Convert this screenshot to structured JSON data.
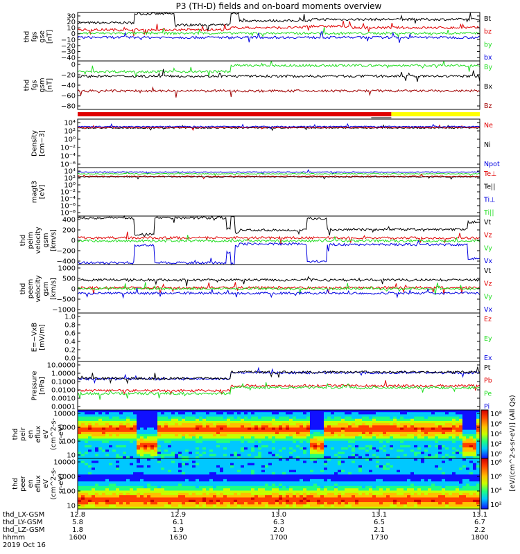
{
  "title": "P3 (TH-D) fields and on-board moments overview",
  "footer": {
    "row_labels": [
      "thd_LX-GSM",
      "thd_LY-GSM",
      "thd_LZ-GSM",
      "hhmm",
      "2019 Oct 16"
    ],
    "columns": [
      {
        "lx": "12.8",
        "ly": "5.8",
        "lz": "1.8",
        "hhmm": "1600"
      },
      {
        "lx": "12.9",
        "ly": "6.1",
        "lz": "1.9",
        "hhmm": "1630"
      },
      {
        "lx": "13.0",
        "ly": "6.3",
        "lz": "2.0",
        "hhmm": "1700"
      },
      {
        "lx": "13.1",
        "ly": "6.5",
        "lz": "2.1",
        "hhmm": "1730"
      },
      {
        "lx": "13.1",
        "ly": "6.7",
        "lz": "2.2",
        "hhmm": "1800"
      }
    ]
  },
  "colorbar": {
    "label": "[eV/(cm^2-s-sr-eV)] (All Qs)",
    "top_ticks": [
      "10⁸",
      "10⁶",
      "10⁴",
      "10²",
      "10⁰"
    ],
    "bottom_ticks": [
      "10⁸",
      "10⁶",
      "10⁴",
      "10²"
    ]
  },
  "colors": {
    "black": "#000000",
    "red": "#e00000",
    "green": "#22dd22",
    "blue": "#0000e0",
    "darkred": "#a00000",
    "yellow": "#ffff00"
  },
  "chart_data": [
    {
      "type": "line",
      "ylabel": [
        "thd",
        "fgs",
        "gse",
        "[nT]"
      ],
      "yticks": [
        "30",
        "20",
        "10",
        "0",
        "−10",
        "−20",
        "−30",
        "−40"
      ],
      "legend": [
        {
          "name": "Bt",
          "color": "#000000"
        },
        {
          "name": "bz",
          "color": "#e00000"
        },
        {
          "name": "by",
          "color": "#22dd22"
        },
        {
          "name": "bx",
          "color": "#0000e0"
        }
      ],
      "ylim": [
        -40,
        30
      ],
      "series": [
        {
          "name": "Bt",
          "color": "#000000",
          "segments": [
            [
              0,
              0.14,
              15
            ],
            [
              0.14,
              0.24,
              28
            ],
            [
              0.24,
              0.38,
              12
            ],
            [
              0.38,
              0.4,
              28
            ],
            [
              0.4,
              0.58,
              18
            ],
            [
              0.58,
              0.68,
              20
            ],
            [
              0.68,
              1.0,
              20
            ]
          ]
        },
        {
          "name": "bz",
          "color": "#e00000",
          "segments": [
            [
              0,
              0.38,
              5
            ],
            [
              0.38,
              0.56,
              8
            ],
            [
              0.56,
              0.68,
              10
            ],
            [
              0.68,
              1.0,
              8
            ]
          ]
        },
        {
          "name": "by",
          "color": "#22dd22",
          "segments": [
            [
              0,
              1.0,
              0
            ]
          ]
        },
        {
          "name": "bx",
          "color": "#0000e0",
          "segments": [
            [
              0,
              1.0,
              -6
            ]
          ]
        }
      ]
    },
    {
      "type": "line",
      "ylabel": [
        "thd",
        "fgs",
        "gsm",
        "[nT]"
      ],
      "yticks": [
        "0",
        "−20",
        "−40",
        "−60",
        "−80"
      ],
      "legend": [
        {
          "name": "By",
          "color": "#22dd22"
        },
        {
          "name": "Bx",
          "color": "#000000"
        },
        {
          "name": "Bz",
          "color": "#a00000"
        }
      ],
      "ylim": [
        -90,
        15
      ],
      "series": [
        {
          "name": "By",
          "color": "#22dd22",
          "segments": [
            [
              0,
              0.38,
              -8
            ],
            [
              0.38,
              1.0,
              5
            ]
          ]
        },
        {
          "name": "Bx",
          "color": "#000000",
          "segments": [
            [
              0,
              1.0,
              -18
            ]
          ]
        },
        {
          "name": "Bz",
          "color": "#a00000",
          "segments": [
            [
              0,
              1.0,
              -50
            ]
          ]
        }
      ]
    },
    {
      "type": "line",
      "ylabel": [
        "Density",
        "[cm−3]"
      ],
      "yticks": [
        "10⁴",
        "10²",
        "10⁰",
        "10⁻²",
        "10⁻⁴",
        "10⁻⁶"
      ],
      "legend": [
        {
          "name": "Ne",
          "color": "#e00000"
        },
        {
          "name": "Ni",
          "color": "#000000"
        },
        {
          "name": "Npot",
          "color": "#0000e0"
        }
      ],
      "ylim": [
        -7,
        4
      ],
      "log": true,
      "series": [
        {
          "name": "Ni",
          "color": "#000000",
          "segments": [
            [
              0,
              1.0,
              2
            ]
          ]
        },
        {
          "name": "Ne",
          "color": "#e00000",
          "segments": [
            [
              0,
              1.0,
              2.1
            ]
          ]
        },
        {
          "name": "Npot",
          "color": "#0000e0",
          "segments": [
            [
              0,
              1.0,
              2.3
            ]
          ]
        }
      ]
    },
    {
      "type": "line",
      "ylabel": [
        "magt3",
        "[eV]"
      ],
      "yticks": [
        "10⁴",
        "10²",
        "10⁰",
        "10⁻²",
        "10⁻⁴",
        "10⁻⁶",
        "10⁻⁸"
      ],
      "legend": [
        {
          "name": "Te⊥",
          "color": "#e00000"
        },
        {
          "name": "Te||",
          "color": "#000000"
        },
        {
          "name": "Ti⊥",
          "color": "#0000e0"
        },
        {
          "name": "Ti||",
          "color": "#22dd22"
        }
      ],
      "ylim": [
        -9,
        5
      ],
      "log": true,
      "series": [
        {
          "name": "Ti⊥",
          "color": "#0000e0",
          "segments": [
            [
              0,
              1.0,
              3.7
            ]
          ]
        },
        {
          "name": "Ti||",
          "color": "#22dd22",
          "segments": [
            [
              0,
              1.0,
              3.2
            ]
          ]
        },
        {
          "name": "Te⊥",
          "color": "#e00000",
          "segments": [
            [
              0,
              1.0,
              2.5
            ]
          ]
        },
        {
          "name": "Te||",
          "color": "#000000",
          "segments": [
            [
              0,
              1.0,
              2.3
            ]
          ]
        }
      ]
    },
    {
      "type": "line",
      "ylabel": [
        "thd",
        "peim",
        "velocity",
        "gsm",
        "[km/s]"
      ],
      "yticks": [
        "400",
        "200",
        "0",
        "−200",
        "−400"
      ],
      "legend": [
        {
          "name": "Vt",
          "color": "#000000"
        },
        {
          "name": "Vz",
          "color": "#e00000"
        },
        {
          "name": "Vy",
          "color": "#22dd22"
        },
        {
          "name": "Vx",
          "color": "#0000e0"
        }
      ],
      "ylim": [
        -400,
        400
      ],
      "series": [
        {
          "name": "Vt",
          "color": "#000000",
          "segments": [
            [
              0,
              0.14,
              370
            ],
            [
              0.14,
              0.19,
              100
            ],
            [
              0.19,
              0.37,
              370
            ],
            [
              0.37,
              0.38,
              200
            ],
            [
              0.38,
              0.39,
              400
            ],
            [
              0.39,
              0.4,
              120
            ],
            [
              0.4,
              0.57,
              170
            ],
            [
              0.57,
              0.62,
              360
            ],
            [
              0.62,
              0.97,
              180
            ],
            [
              0.97,
              1.0,
              300
            ]
          ]
        },
        {
          "name": "Vz",
          "color": "#e00000",
          "segments": [
            [
              0,
              1.0,
              40
            ]
          ]
        },
        {
          "name": "Vy",
          "color": "#22dd22",
          "segments": [
            [
              0,
              1.0,
              -10
            ]
          ]
        },
        {
          "name": "Vx",
          "color": "#0000e0",
          "segments": [
            [
              0,
              0.14,
              -370
            ],
            [
              0.14,
              0.19,
              -80
            ],
            [
              0.19,
              0.37,
              -370
            ],
            [
              0.37,
              0.38,
              -200
            ],
            [
              0.38,
              0.39,
              -390
            ],
            [
              0.39,
              0.4,
              -100
            ],
            [
              0.4,
              0.57,
              -60
            ],
            [
              0.57,
              0.62,
              -350
            ],
            [
              0.62,
              0.97,
              -70
            ],
            [
              0.97,
              1.0,
              -300
            ]
          ]
        }
      ]
    },
    {
      "type": "line",
      "ylabel": [
        "thd",
        "peem",
        "velocity",
        "gsm",
        "[km/s]"
      ],
      "yticks": [
        "1000",
        "500",
        "0",
        "−500",
        "−1000"
      ],
      "legend": [
        {
          "name": "Vt",
          "color": "#000000"
        },
        {
          "name": "Vz",
          "color": "#e00000"
        },
        {
          "name": "Vy",
          "color": "#22dd22"
        },
        {
          "name": "Vx",
          "color": "#0000e0"
        }
      ],
      "ylim": [
        -1100,
        1100
      ],
      "series": [
        {
          "name": "Vt",
          "color": "#000000",
          "segments": [
            [
              0,
              1.0,
              400
            ]
          ]
        },
        {
          "name": "Vz",
          "color": "#e00000",
          "segments": [
            [
              0,
              1.0,
              50
            ]
          ]
        },
        {
          "name": "Vy",
          "color": "#22dd22",
          "segments": [
            [
              0,
              1.0,
              0
            ]
          ]
        },
        {
          "name": "Vx",
          "color": "#0000e0",
          "segments": [
            [
              0,
              1.0,
              -200
            ]
          ]
        }
      ]
    },
    {
      "type": "line",
      "ylabel": [
        "E=−VxB",
        "[mV/m]"
      ],
      "yticks": [
        "1.0",
        "0.8",
        "0.6",
        "0.4",
        "0.2",
        "0.0"
      ],
      "legend": [
        {
          "name": "Ez",
          "color": "#e00000"
        },
        {
          "name": "Ey",
          "color": "#22dd22"
        },
        {
          "name": "Ex",
          "color": "#0000e0"
        }
      ],
      "ylim": [
        0,
        1.0
      ],
      "series": []
    },
    {
      "type": "line",
      "ylabel": [
        "Pressure",
        "[nPa]"
      ],
      "yticks": [
        "10.0000",
        "1.0000",
        "0.1000",
        "0.0100",
        "0.0010",
        "0.0001"
      ],
      "legend": [
        {
          "name": "Pt",
          "color": "#000000"
        },
        {
          "name": "Pb",
          "color": "#e00000"
        },
        {
          "name": "Pe",
          "color": "#22dd22"
        },
        {
          "name": "Pi",
          "color": "#0000e0"
        }
      ],
      "ylim": [
        -4,
        1
      ],
      "log": true,
      "series": [
        {
          "name": "Pi",
          "color": "#0000e0",
          "segments": [
            [
              0,
              0.38,
              -0.8
            ],
            [
              0.38,
              1.0,
              -0.15
            ]
          ]
        },
        {
          "name": "Pt",
          "color": "#000000",
          "segments": [
            [
              0,
              0.38,
              -0.75
            ],
            [
              0.38,
              1.0,
              -0.1
            ]
          ]
        },
        {
          "name": "Pb",
          "color": "#e00000",
          "segments": [
            [
              0,
              0.38,
              -2.0
            ],
            [
              0.38,
              1.0,
              -1.5
            ]
          ]
        },
        {
          "name": "Pe",
          "color": "#22dd22",
          "segments": [
            [
              0,
              0.38,
              -2.3
            ],
            [
              0.38,
              1.0,
              -1.7
            ]
          ]
        }
      ]
    },
    {
      "type": "heatmap",
      "ylabel": [
        "thd",
        "peir",
        "en",
        "eflux",
        "eV",
        "(cm^2-s-",
        "sr-eV)"
      ],
      "yticks": [
        "10000",
        "1000",
        "100",
        "10"
      ],
      "log": true,
      "ylim": [
        0.7,
        4.3
      ]
    },
    {
      "type": "heatmap",
      "ylabel": [
        "thd",
        "peer",
        "en",
        "eflux",
        "eV",
        "(cm^2-s-",
        "sr-eV)"
      ],
      "yticks": [
        "10000",
        "1000",
        "100",
        "10"
      ],
      "log": true,
      "ylim": [
        0.7,
        4.3
      ]
    }
  ]
}
